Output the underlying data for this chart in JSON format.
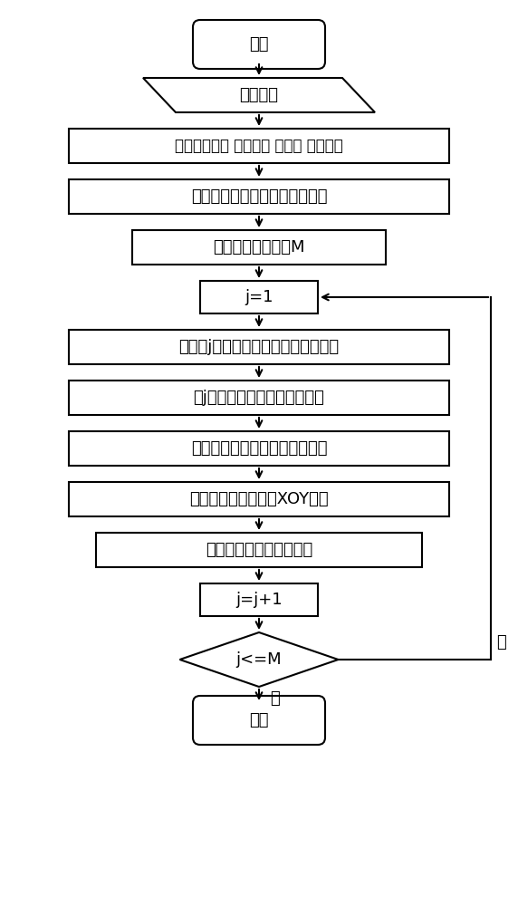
{
  "nodes": [
    {
      "id": "start",
      "type": "rounded_rect",
      "text": "开始"
    },
    {
      "id": "data",
      "type": "parallelogram",
      "text": "点云数据"
    },
    {
      "id": "set",
      "type": "rect_wide",
      "text": "设置断面间隔 切割厚度 偏移量 角度间隔"
    },
    {
      "id": "calc3d",
      "type": "rect_wide",
      "text": "计算所有提取断面处的三维坐标"
    },
    {
      "id": "calcM",
      "type": "rect_med",
      "text": "计算提取断面总数M"
    },
    {
      "id": "j1",
      "type": "rect_small",
      "text": "j=1"
    },
    {
      "id": "calcnorm",
      "type": "rect_wide",
      "text": "计算第j个里程处法向量和法平面系数"
    },
    {
      "id": "split",
      "type": "rect_wide",
      "text": "第j个里程处隊道断面点云分割"
    },
    {
      "id": "proj",
      "type": "rect_wide",
      "text": "隊道断面点云投影变换到法平面"
    },
    {
      "id": "xoy",
      "type": "rect_wide",
      "text": "法平面上的点转换到XOY平面"
    },
    {
      "id": "feature",
      "type": "rect_wide",
      "text": "获取断面特征点和特征线"
    },
    {
      "id": "jj1",
      "type": "rect_small",
      "text": "j=j+1"
    },
    {
      "id": "cond",
      "type": "diamond",
      "text": "j<=M"
    },
    {
      "id": "end",
      "type": "rounded_rect",
      "text": "结束"
    }
  ],
  "yes_label": "是",
  "no_label": "否",
  "bg_color": "#ffffff",
  "lw": 1.5,
  "font_size": 13
}
